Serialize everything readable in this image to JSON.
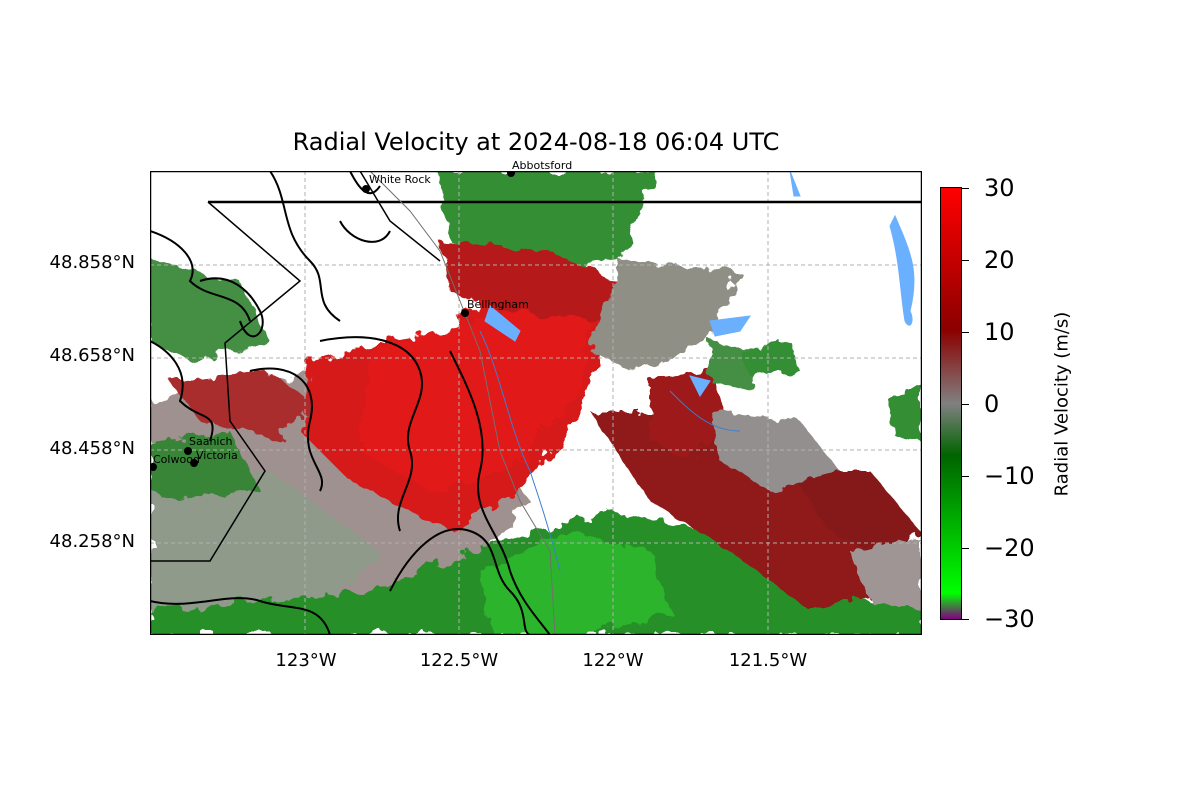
{
  "title": "Radial Velocity at 2024-08-18 06:04 UTC",
  "map": {
    "lat_ticks": [
      "48.858°N",
      "48.658°N",
      "48.458°N",
      "48.258°N"
    ],
    "lon_ticks": [
      "123°W",
      "122.5°W",
      "122°W",
      "121.5°W"
    ],
    "cities": [
      {
        "name": "White Rock"
      },
      {
        "name": "Abbotsford"
      },
      {
        "name": "Bellingham"
      },
      {
        "name": "Saanich"
      },
      {
        "name": "Victoria"
      },
      {
        "name": "Colwood"
      }
    ]
  },
  "colorbar": {
    "label": "Radial Velocity (m/s)",
    "ticks": [
      "30",
      "20",
      "10",
      "0",
      "−10",
      "−20",
      "−30"
    ],
    "range": [
      -30,
      30
    ],
    "colors": {
      "max": "#ff0000",
      "mid_high": "#8b0000",
      "zero": "#808080",
      "mid_low": "#006400",
      "near_min": "#00ff00",
      "min": "#800080"
    }
  }
}
